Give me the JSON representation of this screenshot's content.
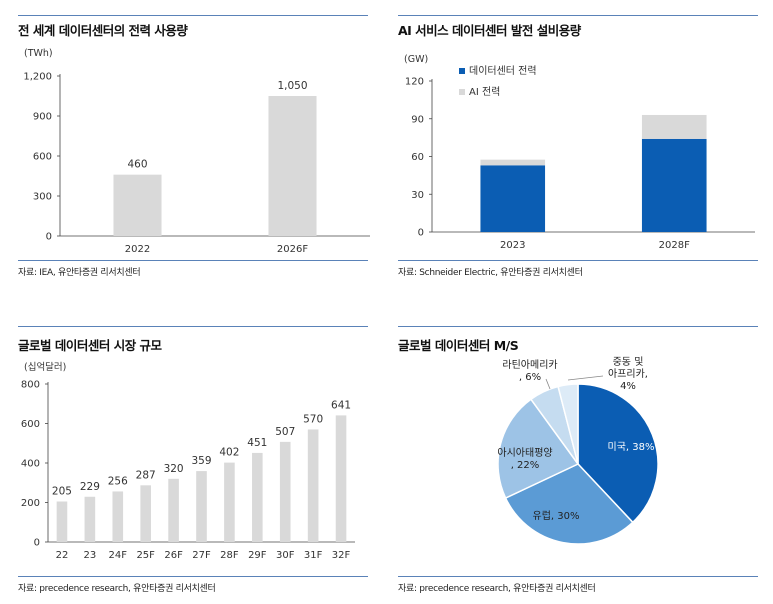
{
  "panels": {
    "p1": {
      "title": "전 세계 데이터센터의 전력 사용량",
      "source": "자료: IEA, 유안타증권 리서치센터"
    },
    "p2": {
      "title": "AI 서비스 데이터센터 발전 설비용량",
      "source": "자료: Schneider Electric, 유안타증권 리서치센터"
    },
    "p3": {
      "title": "글로벌 데이터센터 시장 규모",
      "source": "자료: precedence research, 유안타증권 리서치센터"
    },
    "p4": {
      "title": "글로벌 데이터센터 M/S",
      "source": "자료: precedence research, 유안타증권 리서치센터"
    }
  },
  "colors": {
    "gray_bar": "#d9d9d9",
    "blue": "#0b5db3",
    "light_blue": "#5b9bd5",
    "lighter_blue": "#9dc3e6",
    "lightest_blue": "#ddebf7",
    "rule": "#5a82b8"
  },
  "chart_data": [
    {
      "type": "bar",
      "ylabel": "(TWh)",
      "categories": [
        "2022",
        "2026F"
      ],
      "values": [
        460,
        1050
      ],
      "data_labels": [
        "460",
        "1,050"
      ],
      "ylim": [
        0,
        1200
      ],
      "yticks": [
        "0",
        "300",
        "600",
        "900",
        "1,200"
      ],
      "ytick_values": [
        0,
        300,
        600,
        900,
        1200
      ]
    },
    {
      "type": "bar",
      "stacked": true,
      "ylabel": "(GW)",
      "categories": [
        "2023",
        "2028F"
      ],
      "series": [
        {
          "name": "데이터센터 전력",
          "values": [
            53,
            74
          ],
          "color": "#0b5db3"
        },
        {
          "name": "AI 전력",
          "values": [
            4.5,
            19
          ],
          "color": "#d9d9d9"
        }
      ],
      "ylim": [
        0,
        120
      ],
      "yticks": [
        "0",
        "30",
        "60",
        "90",
        "120"
      ],
      "ytick_values": [
        0,
        30,
        60,
        90,
        120
      ],
      "legend_position": "top-left"
    },
    {
      "type": "bar",
      "ylabel": "(십억달러)",
      "categories": [
        "22",
        "23",
        "24F",
        "25F",
        "26F",
        "27F",
        "28F",
        "29F",
        "30F",
        "31F",
        "32F"
      ],
      "values": [
        205,
        229,
        256,
        287,
        320,
        359,
        402,
        451,
        507,
        570,
        641
      ],
      "data_labels": [
        "205",
        "229",
        "256",
        "287",
        "320",
        "359",
        "402",
        "451",
        "507",
        "570",
        "641"
      ],
      "ylim": [
        0,
        800
      ],
      "yticks": [
        "0",
        "200",
        "400",
        "600",
        "800"
      ],
      "ytick_values": [
        0,
        200,
        400,
        600,
        800
      ]
    },
    {
      "type": "pie",
      "slices": [
        {
          "label": "미국, 38%",
          "value": 38,
          "color": "#0b5db3",
          "label_color": "#ffffff"
        },
        {
          "label": "유럽, 30%",
          "value": 30,
          "color": "#5b9bd5",
          "label_color": "#222222"
        },
        {
          "label": "아시아태평양, 22%",
          "label_lines": [
            "아시아태평양",
            ", 22%"
          ],
          "value": 22,
          "color": "#9dc3e6",
          "label_color": "#222222"
        },
        {
          "label": "라틴아메리카, 6%",
          "label_lines": [
            "라틴아메리카",
            ", 6%"
          ],
          "value": 6,
          "color": "#c5dcf0",
          "label_color": "#222222"
        },
        {
          "label": "중동 및 아프리카, 4%",
          "label_lines": [
            "중동 및",
            "아프리카,",
            "4%"
          ],
          "value": 4,
          "color": "#ddebf7",
          "label_color": "#222222"
        }
      ]
    }
  ]
}
